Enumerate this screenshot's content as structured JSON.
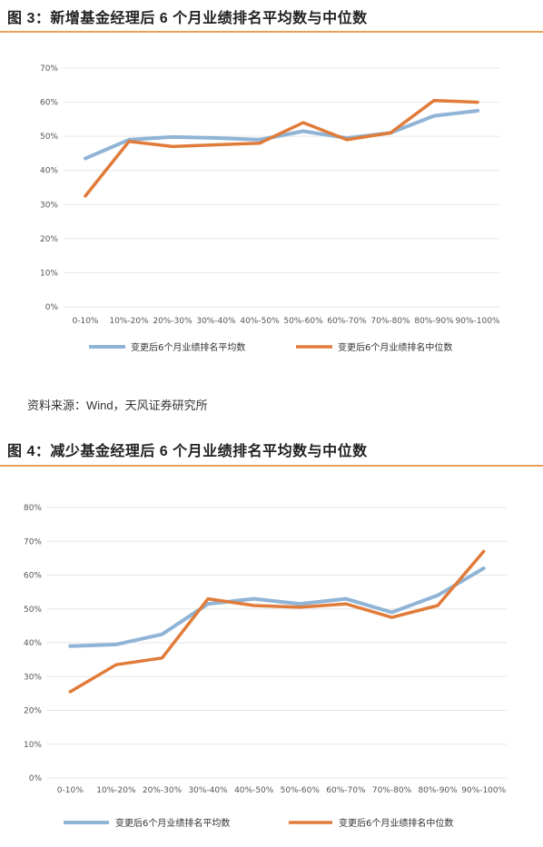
{
  "figures": [
    {
      "title": "图 3：新增基金经理后 6 个月业绩排名平均数与中位数",
      "source": "资料来源：Wind，天风证券研究所"
    },
    {
      "title": "图 4：减少基金经理后 6 个月业绩排名平均数与中位数"
    }
  ],
  "colors": {
    "mean": "#8fb4d6",
    "median": "#e07b39",
    "grid": "#e6e6e6",
    "rule": "#e8a05a"
  },
  "chart_data": [
    {
      "type": "line",
      "title": "图 3：新增基金经理后 6 个月业绩排名平均数与中位数",
      "categories": [
        "0-10%",
        "10%-20%",
        "20%-30%",
        "30%-40%",
        "40%-50%",
        "50%-60%",
        "60%-70%",
        "70%-80%",
        "80%-90%",
        "90%-100%"
      ],
      "y_ticks": [
        "0%",
        "10%",
        "20%",
        "30%",
        "40%",
        "50%",
        "60%",
        "70%"
      ],
      "ylim": [
        0,
        70
      ],
      "grid": true,
      "legend_position": "bottom",
      "series": [
        {
          "name": "变更后6个月业绩排名平均数",
          "values": [
            43.5,
            49,
            49.8,
            49.5,
            49,
            51.5,
            49.5,
            51,
            56,
            57.5
          ]
        },
        {
          "name": "变更后6个月业绩排名中位数",
          "values": [
            32.5,
            48.5,
            47,
            47.5,
            48,
            54,
            49,
            51,
            60.5,
            60
          ]
        }
      ]
    },
    {
      "type": "line",
      "title": "图 4：减少基金经理后 6 个月业绩排名平均数与中位数",
      "categories": [
        "0-10%",
        "10%-20%",
        "20%-30%",
        "30%-40%",
        "40%-50%",
        "50%-60%",
        "60%-70%",
        "70%-80%",
        "80%-90%",
        "90%-100%"
      ],
      "y_ticks": [
        "0%",
        "10%",
        "20%",
        "30%",
        "40%",
        "50%",
        "60%",
        "70%",
        "80%"
      ],
      "ylim": [
        0,
        80
      ],
      "grid": true,
      "legend_position": "bottom",
      "series": [
        {
          "name": "变更后6个月业绩排名平均数",
          "values": [
            39,
            39.5,
            42.5,
            51.5,
            53,
            51.5,
            53,
            49,
            54,
            62
          ]
        },
        {
          "name": "变更后6个月业绩排名中位数",
          "values": [
            25.5,
            33.5,
            35.5,
            53,
            51,
            50.5,
            51.5,
            47.5,
            51,
            67
          ]
        }
      ]
    }
  ]
}
